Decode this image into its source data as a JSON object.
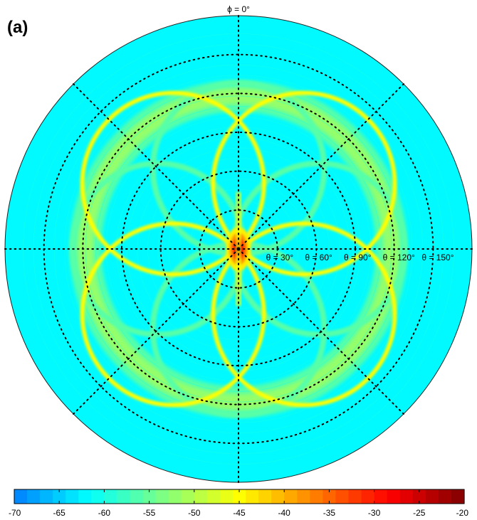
{
  "panel_label": "(a)",
  "chart_data": {
    "type": "heatmap",
    "projection": "polar",
    "title": "",
    "azimuth_label": "ϕ = 0°",
    "radial_tick_labels": [
      "θ = 30°",
      "θ = 60°",
      "θ = 90°",
      "θ = 120°",
      "θ = 150°"
    ],
    "radial_ticks_deg": [
      30,
      60,
      90,
      120,
      150
    ],
    "radial_range_deg": [
      0,
      180
    ],
    "azimuth_gridlines_deg": [
      0,
      45,
      90,
      135,
      180,
      225,
      270,
      315
    ],
    "grid": true,
    "grid_style": "dotted",
    "colormap": "jet",
    "colorbar": {
      "location": "bottom",
      "range": [
        -70,
        -20
      ],
      "tick_values": [
        -70,
        -65,
        -60,
        -55,
        -50,
        -45,
        -40,
        -35,
        -30,
        -25,
        -20
      ],
      "tick_labels": [
        "-70",
        "-65",
        "-60",
        "-55",
        "-50",
        "-45",
        "-40",
        "-35",
        "-30",
        "-25",
        "-20"
      ],
      "steps": 35
    },
    "features": {
      "peak_value": -20,
      "background_value": -62,
      "peak_theta_deg": 0,
      "outer_ring_value": -52,
      "outer_ring_theta_deg": 118,
      "lobe_arc_value": -45,
      "inner_arc_value": -56
    }
  }
}
